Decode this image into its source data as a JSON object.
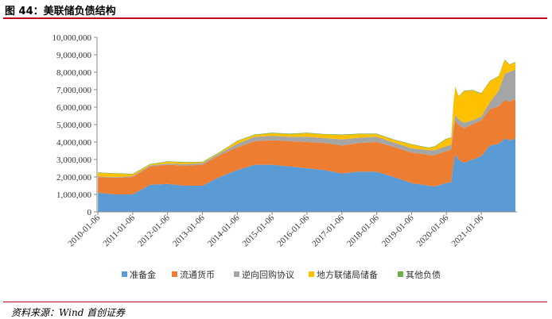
{
  "header": {
    "title": "图 44：美联储负债结构"
  },
  "footer": {
    "source": "资料来源：Wind  首创证券"
  },
  "colors": {
    "rule": "#c0001a",
    "series": [
      "#5b9bd5",
      "#ed7d31",
      "#a5a5a5",
      "#ffc000",
      "#70ad47"
    ]
  },
  "chart_data": {
    "type": "area",
    "stacked": true,
    "title": "",
    "xlabel": "",
    "ylabel": "",
    "ylim": [
      0,
      10000000
    ],
    "y_ticks": [
      0,
      1000000,
      2000000,
      3000000,
      4000000,
      5000000,
      6000000,
      7000000,
      8000000,
      9000000,
      10000000
    ],
    "y_tick_labels": [
      "0",
      "1,000,000",
      "2,000,000",
      "3,000,000",
      "4,000,000",
      "5,000,000",
      "6,000,000",
      "7,000,000",
      "8,000,000",
      "9,000,000",
      "10,000,000"
    ],
    "x_tick_labels": [
      "2010-01-06",
      "2011-01-06",
      "2012-01-06",
      "2013-01-06",
      "2014-01-06",
      "2015-01-06",
      "2016-01-06",
      "2017-01-06",
      "2018-01-06",
      "2019-01-06",
      "2020-01-06",
      "2021-01-06"
    ],
    "legend_position": "bottom",
    "grid": false,
    "x": [
      "2010-01-06",
      "2010-07-06",
      "2011-01-06",
      "2011-07-06",
      "2012-01-06",
      "2012-07-06",
      "2013-01-06",
      "2013-07-06",
      "2014-01-06",
      "2014-07-06",
      "2015-01-06",
      "2015-07-06",
      "2016-01-06",
      "2016-07-06",
      "2017-01-06",
      "2017-07-06",
      "2018-01-06",
      "2018-07-06",
      "2019-01-06",
      "2019-07-06",
      "2019-09-06",
      "2019-12-30",
      "2020-02-26",
      "2020-03-18",
      "2020-04-08",
      "2020-05-13",
      "2020-07-08",
      "2020-10-07",
      "2021-01-06",
      "2021-04-07",
      "2021-07-07",
      "2021-09-08",
      "2021-10-27",
      "2021-12-29"
    ],
    "series": [
      {
        "name": "准备金",
        "values": [
          1100000,
          1000000,
          1000000,
          1550000,
          1600000,
          1500000,
          1500000,
          2000000,
          2400000,
          2700000,
          2700000,
          2600000,
          2500000,
          2400000,
          2200000,
          2300000,
          2300000,
          2000000,
          1650000,
          1500000,
          1450000,
          1650000,
          1700000,
          2700000,
          3300000,
          3000000,
          2800000,
          3000000,
          3200000,
          3800000,
          3900000,
          4200000,
          4100000,
          4200000
        ]
      },
      {
        "name": "流通货币",
        "values": [
          900000,
          950000,
          1000000,
          1050000,
          1100000,
          1150000,
          1200000,
          1250000,
          1300000,
          1350000,
          1400000,
          1450000,
          1500000,
          1550000,
          1600000,
          1650000,
          1700000,
          1720000,
          1750000,
          1770000,
          1800000,
          1820000,
          1850000,
          1880000,
          1950000,
          1980000,
          2000000,
          2020000,
          2050000,
          2080000,
          2150000,
          2200000,
          2220000,
          2250000
        ]
      },
      {
        "name": "逆向回购协议",
        "values": [
          30000,
          40000,
          50000,
          60000,
          70000,
          80000,
          90000,
          100000,
          200000,
          250000,
          250000,
          250000,
          300000,
          280000,
          350000,
          300000,
          300000,
          250000,
          250000,
          260000,
          280000,
          280000,
          290000,
          300000,
          300000,
          320000,
          310000,
          230000,
          220000,
          400000,
          900000,
          1500000,
          1700000,
          1700000
        ]
      },
      {
        "name": "地方联储局储备",
        "values": [
          200000,
          200000,
          100000,
          50000,
          100000,
          100000,
          50000,
          50000,
          150000,
          100000,
          150000,
          150000,
          200000,
          200000,
          250000,
          200000,
          150000,
          150000,
          200000,
          120000,
          200000,
          400000,
          400000,
          1200000,
          1600000,
          1300000,
          1800000,
          1700000,
          1300000,
          1200000,
          800000,
          800000,
          400000,
          400000
        ]
      },
      {
        "name": "其他负债",
        "values": [
          30000,
          30000,
          30000,
          30000,
          30000,
          30000,
          30000,
          30000,
          30000,
          30000,
          30000,
          30000,
          30000,
          30000,
          30000,
          30000,
          30000,
          30000,
          30000,
          30000,
          30000,
          30000,
          30000,
          30000,
          30000,
          30000,
          30000,
          30000,
          30000,
          30000,
          30000,
          30000,
          30000,
          30000
        ]
      }
    ]
  }
}
